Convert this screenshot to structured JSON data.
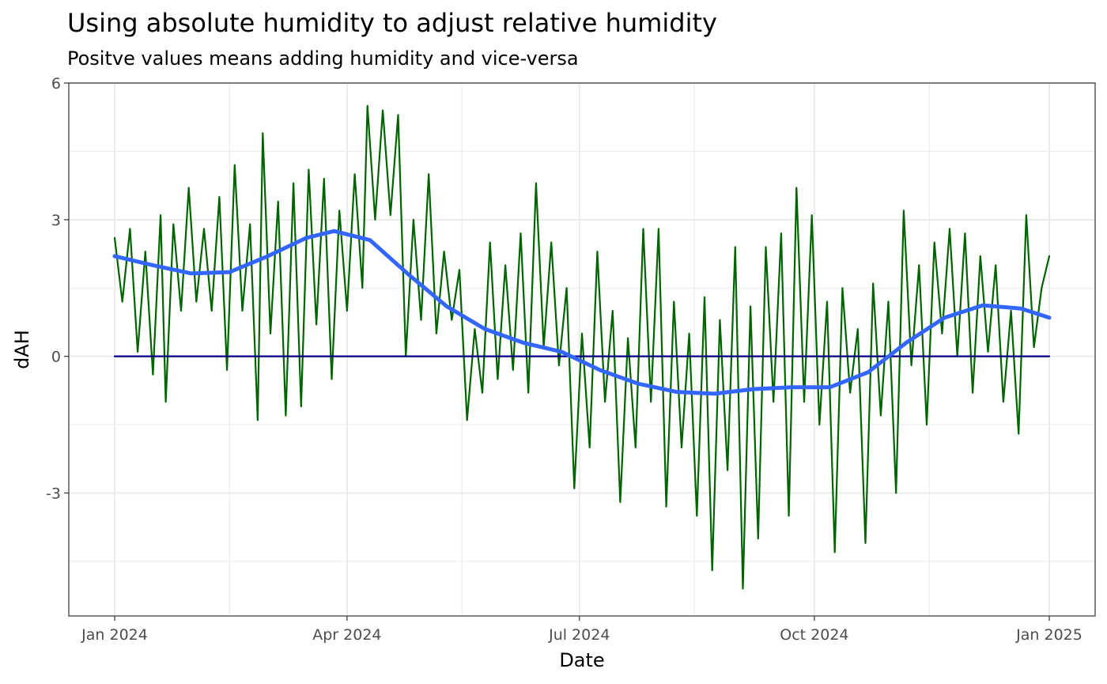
{
  "chart_data": {
    "type": "line",
    "title": "Using absolute humidity to adjust relative humidity",
    "subtitle": "Positve values means adding humidity and vice-versa",
    "xlabel": "Date",
    "ylabel": "dAH",
    "x_range": [
      "2024-01-01",
      "2025-01-01"
    ],
    "ylim": [
      -5.7,
      6.0
    ],
    "x_ticks": [
      {
        "date": "2024-01-01",
        "label": "Jan 2024"
      },
      {
        "date": "2024-04-01",
        "label": "Apr 2024"
      },
      {
        "date": "2024-07-01",
        "label": "Jul 2024"
      },
      {
        "date": "2024-10-01",
        "label": "Oct 2024"
      },
      {
        "date": "2025-01-01",
        "label": "Jan 2025"
      }
    ],
    "x_minor_ticks": [
      "2024-02-15",
      "2024-05-16",
      "2024-08-15",
      "2024-11-15"
    ],
    "y_ticks": [
      {
        "value": -3,
        "label": "-3"
      },
      {
        "value": 0,
        "label": "0"
      },
      {
        "value": 3,
        "label": "3"
      },
      {
        "value": 6,
        "label": "6"
      }
    ],
    "y_minor_ticks": [
      -4.5,
      -1.5,
      1.5,
      4.5
    ],
    "grid": true,
    "colors": {
      "raw_series": "#006400",
      "smooth_series": "#3366ff",
      "zero_line": "#000080",
      "grid": "#ebebeb",
      "panel_border": "#333333"
    },
    "series": [
      {
        "role": "raw",
        "points": [
          [
            "2024-01-01",
            2.6
          ],
          [
            "2024-01-04",
            1.2
          ],
          [
            "2024-01-07",
            2.8
          ],
          [
            "2024-01-10",
            0.1
          ],
          [
            "2024-01-13",
            2.3
          ],
          [
            "2024-01-16",
            -0.4
          ],
          [
            "2024-01-19",
            3.1
          ],
          [
            "2024-01-21",
            -1.0
          ],
          [
            "2024-01-24",
            2.9
          ],
          [
            "2024-01-27",
            1.0
          ],
          [
            "2024-01-30",
            3.7
          ],
          [
            "2024-02-02",
            1.2
          ],
          [
            "2024-02-05",
            2.8
          ],
          [
            "2024-02-08",
            1.0
          ],
          [
            "2024-02-11",
            3.5
          ],
          [
            "2024-02-14",
            -0.3
          ],
          [
            "2024-02-17",
            4.2
          ],
          [
            "2024-02-20",
            1.0
          ],
          [
            "2024-02-23",
            2.9
          ],
          [
            "2024-02-26",
            -1.4
          ],
          [
            "2024-02-28",
            4.9
          ],
          [
            "2024-03-02",
            0.5
          ],
          [
            "2024-03-05",
            3.4
          ],
          [
            "2024-03-08",
            -1.3
          ],
          [
            "2024-03-11",
            3.8
          ],
          [
            "2024-03-14",
            -1.1
          ],
          [
            "2024-03-17",
            4.1
          ],
          [
            "2024-03-20",
            0.7
          ],
          [
            "2024-03-23",
            3.9
          ],
          [
            "2024-03-26",
            -0.5
          ],
          [
            "2024-03-29",
            3.2
          ],
          [
            "2024-04-01",
            1.0
          ],
          [
            "2024-04-04",
            4.0
          ],
          [
            "2024-04-07",
            1.5
          ],
          [
            "2024-04-09",
            5.5
          ],
          [
            "2024-04-12",
            3.0
          ],
          [
            "2024-04-15",
            5.4
          ],
          [
            "2024-04-18",
            3.1
          ],
          [
            "2024-04-21",
            5.3
          ],
          [
            "2024-04-24",
            0.0
          ],
          [
            "2024-04-27",
            3.0
          ],
          [
            "2024-04-30",
            0.8
          ],
          [
            "2024-05-03",
            4.0
          ],
          [
            "2024-05-06",
            0.5
          ],
          [
            "2024-05-09",
            2.3
          ],
          [
            "2024-05-12",
            0.8
          ],
          [
            "2024-05-15",
            1.9
          ],
          [
            "2024-05-18",
            -1.4
          ],
          [
            "2024-05-21",
            0.6
          ],
          [
            "2024-05-24",
            -0.8
          ],
          [
            "2024-05-27",
            2.5
          ],
          [
            "2024-05-30",
            -0.5
          ],
          [
            "2024-06-02",
            2.0
          ],
          [
            "2024-06-05",
            -0.3
          ],
          [
            "2024-06-08",
            2.7
          ],
          [
            "2024-06-11",
            -0.8
          ],
          [
            "2024-06-14",
            3.8
          ],
          [
            "2024-06-17",
            0.2
          ],
          [
            "2024-06-20",
            2.5
          ],
          [
            "2024-06-23",
            -0.2
          ],
          [
            "2024-06-26",
            1.5
          ],
          [
            "2024-06-29",
            -2.9
          ],
          [
            "2024-07-02",
            0.5
          ],
          [
            "2024-07-05",
            -2.0
          ],
          [
            "2024-07-08",
            2.3
          ],
          [
            "2024-07-11",
            -1.0
          ],
          [
            "2024-07-14",
            1.0
          ],
          [
            "2024-07-17",
            -3.2
          ],
          [
            "2024-07-20",
            0.4
          ],
          [
            "2024-07-23",
            -2.0
          ],
          [
            "2024-07-26",
            2.8
          ],
          [
            "2024-07-29",
            -1.0
          ],
          [
            "2024-08-01",
            2.8
          ],
          [
            "2024-08-04",
            -3.3
          ],
          [
            "2024-08-07",
            1.2
          ],
          [
            "2024-08-10",
            -2.0
          ],
          [
            "2024-08-13",
            0.5
          ],
          [
            "2024-08-16",
            -3.5
          ],
          [
            "2024-08-19",
            1.3
          ],
          [
            "2024-08-22",
            -4.7
          ],
          [
            "2024-08-25",
            0.8
          ],
          [
            "2024-08-28",
            -2.5
          ],
          [
            "2024-08-31",
            2.4
          ],
          [
            "2024-09-03",
            -5.1
          ],
          [
            "2024-09-06",
            1.1
          ],
          [
            "2024-09-09",
            -4.0
          ],
          [
            "2024-09-12",
            2.4
          ],
          [
            "2024-09-15",
            -1.0
          ],
          [
            "2024-09-18",
            2.7
          ],
          [
            "2024-09-21",
            -3.5
          ],
          [
            "2024-09-24",
            3.7
          ],
          [
            "2024-09-27",
            -1.0
          ],
          [
            "2024-09-30",
            3.1
          ],
          [
            "2024-10-03",
            -1.5
          ],
          [
            "2024-10-06",
            1.2
          ],
          [
            "2024-10-09",
            -4.3
          ],
          [
            "2024-10-12",
            1.5
          ],
          [
            "2024-10-15",
            -0.8
          ],
          [
            "2024-10-18",
            0.6
          ],
          [
            "2024-10-21",
            -4.1
          ],
          [
            "2024-10-24",
            1.6
          ],
          [
            "2024-10-27",
            -1.3
          ],
          [
            "2024-10-30",
            1.2
          ],
          [
            "2024-11-02",
            -3.0
          ],
          [
            "2024-11-05",
            3.2
          ],
          [
            "2024-11-08",
            -0.2
          ],
          [
            "2024-11-11",
            2.0
          ],
          [
            "2024-11-14",
            -1.5
          ],
          [
            "2024-11-17",
            2.5
          ],
          [
            "2024-11-20",
            0.5
          ],
          [
            "2024-11-23",
            2.8
          ],
          [
            "2024-11-26",
            0.0
          ],
          [
            "2024-11-29",
            2.7
          ],
          [
            "2024-12-02",
            -0.8
          ],
          [
            "2024-12-05",
            2.2
          ],
          [
            "2024-12-08",
            0.1
          ],
          [
            "2024-12-11",
            2.0
          ],
          [
            "2024-12-14",
            -1.0
          ],
          [
            "2024-12-17",
            1.0
          ],
          [
            "2024-12-20",
            -1.7
          ],
          [
            "2024-12-23",
            3.1
          ],
          [
            "2024-12-26",
            0.2
          ],
          [
            "2024-12-29",
            1.5
          ],
          [
            "2025-01-01",
            2.2
          ]
        ]
      },
      {
        "role": "smooth",
        "points": [
          [
            "2024-01-01",
            2.2
          ],
          [
            "2024-01-16",
            2.0
          ],
          [
            "2024-01-31",
            1.82
          ],
          [
            "2024-02-15",
            1.85
          ],
          [
            "2024-03-01",
            2.2
          ],
          [
            "2024-03-16",
            2.6
          ],
          [
            "2024-03-27",
            2.75
          ],
          [
            "2024-04-10",
            2.55
          ],
          [
            "2024-04-25",
            1.8
          ],
          [
            "2024-05-10",
            1.1
          ],
          [
            "2024-05-25",
            0.6
          ],
          [
            "2024-06-09",
            0.3
          ],
          [
            "2024-06-24",
            0.1
          ],
          [
            "2024-07-09",
            -0.3
          ],
          [
            "2024-07-24",
            -0.6
          ],
          [
            "2024-08-08",
            -0.78
          ],
          [
            "2024-08-23",
            -0.82
          ],
          [
            "2024-09-07",
            -0.72
          ],
          [
            "2024-09-22",
            -0.68
          ],
          [
            "2024-10-07",
            -0.68
          ],
          [
            "2024-10-22",
            -0.35
          ],
          [
            "2024-11-06",
            0.3
          ],
          [
            "2024-11-21",
            0.85
          ],
          [
            "2024-12-06",
            1.12
          ],
          [
            "2024-12-21",
            1.05
          ],
          [
            "2025-01-01",
            0.85
          ]
        ]
      },
      {
        "role": "zero",
        "points": [
          [
            "2024-01-01",
            0
          ],
          [
            "2025-01-01",
            0
          ]
        ]
      }
    ]
  }
}
